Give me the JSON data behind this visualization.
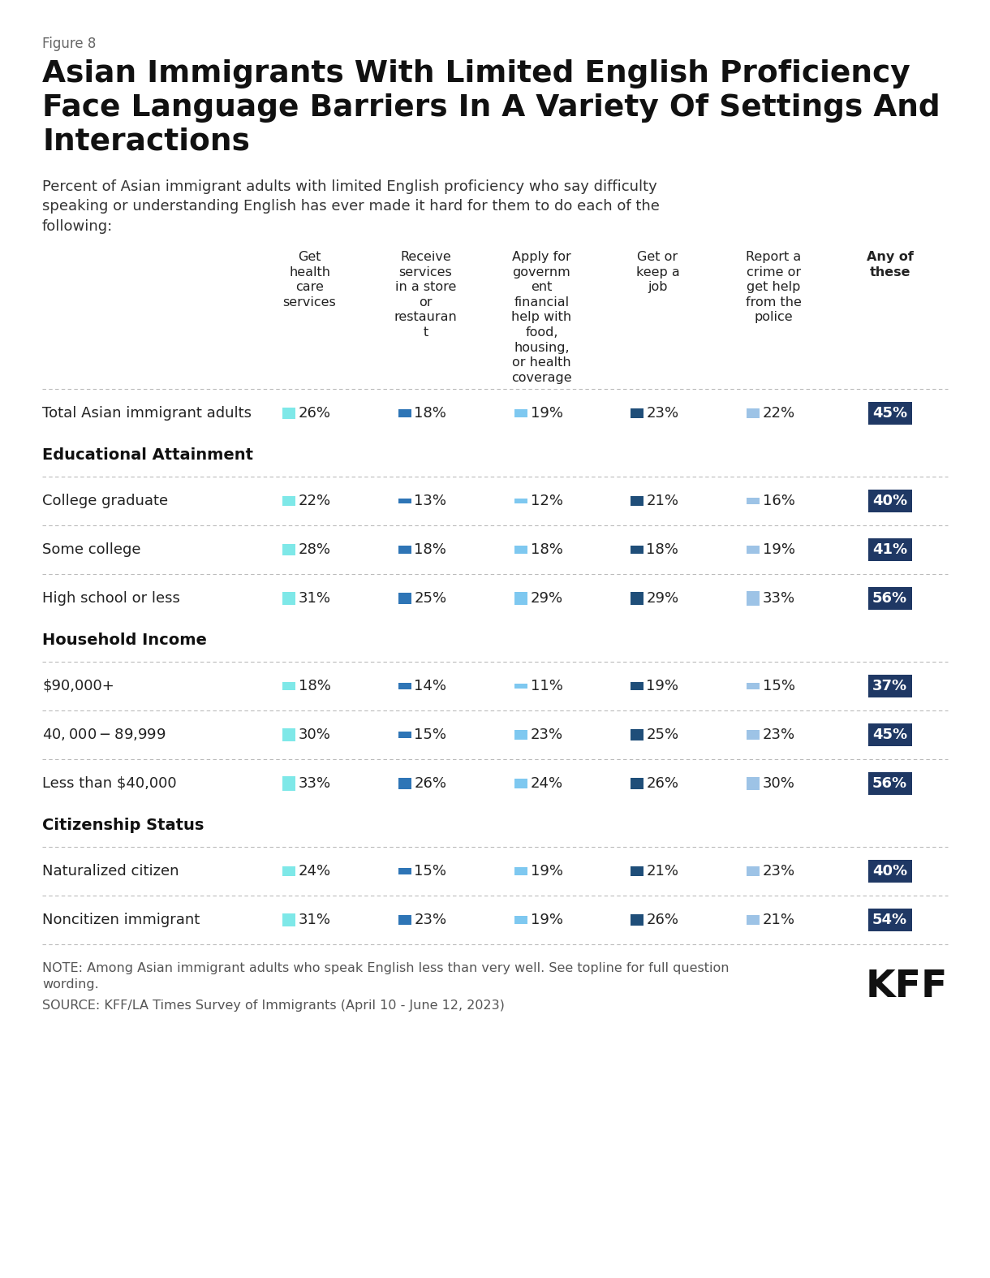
{
  "figure_label": "Figure 8",
  "title": "Asian Immigrants With Limited English Proficiency\nFace Language Barriers In A Variety Of Settings And\nInteractions",
  "subtitle": "Percent of Asian immigrant adults with limited English proficiency who say difficulty\nspeaking or understanding English has ever made it hard for them to do each of the\nfollowing:",
  "col_headers": [
    "Get\nhealth\ncare\nservices",
    "Receive\nservices\nin a store\nor\nrestauran\nt",
    "Apply for\ngovernm\nent\nfinancial\nhelp with\nfood,\nhousing,\nor health\ncoverage",
    "Get or\nkeep a\njob",
    "Report a\ncrime or\nget help\nfrom the\npolice",
    "Any of\nthese"
  ],
  "rows": [
    {
      "label": "Total Asian immigrant adults",
      "values": [
        26,
        18,
        19,
        23,
        22,
        45
      ],
      "is_header": false,
      "is_total": true
    },
    {
      "label": "Educational Attainment",
      "values": null,
      "is_header": true,
      "is_total": false
    },
    {
      "label": "College graduate",
      "values": [
        22,
        13,
        12,
        21,
        16,
        40
      ],
      "is_header": false,
      "is_total": false
    },
    {
      "label": "Some college",
      "values": [
        28,
        18,
        18,
        18,
        19,
        41
      ],
      "is_header": false,
      "is_total": false
    },
    {
      "label": "High school or less",
      "values": [
        31,
        25,
        29,
        29,
        33,
        56
      ],
      "is_header": false,
      "is_total": false
    },
    {
      "label": "Household Income",
      "values": null,
      "is_header": true,
      "is_total": false
    },
    {
      "label": "$90,000+",
      "values": [
        18,
        14,
        11,
        19,
        15,
        37
      ],
      "is_header": false,
      "is_total": false
    },
    {
      "label": "$40,000-$89,999",
      "values": [
        30,
        15,
        23,
        25,
        23,
        45
      ],
      "is_header": false,
      "is_total": false
    },
    {
      "label": "Less than $40,000",
      "values": [
        33,
        26,
        24,
        26,
        30,
        56
      ],
      "is_header": false,
      "is_total": false
    },
    {
      "label": "Citizenship Status",
      "values": null,
      "is_header": true,
      "is_total": false
    },
    {
      "label": "Naturalized citizen",
      "values": [
        24,
        15,
        19,
        21,
        23,
        40
      ],
      "is_header": false,
      "is_total": false
    },
    {
      "label": "Noncitizen immigrant",
      "values": [
        31,
        23,
        19,
        26,
        21,
        54
      ],
      "is_header": false,
      "is_total": false
    }
  ],
  "col_colors": [
    "#7EE8E8",
    "#2E75B6",
    "#7EC8F0",
    "#1F4E79",
    "#9DC3E6",
    "#1F3864"
  ],
  "note": "NOTE: Among Asian immigrant adults who speak English less than very well. See topline for full question\nwording.",
  "source": "SOURCE: KFF/LA Times Survey of Immigrants (April 10 - June 12, 2023)",
  "background_color": "#FFFFFF"
}
